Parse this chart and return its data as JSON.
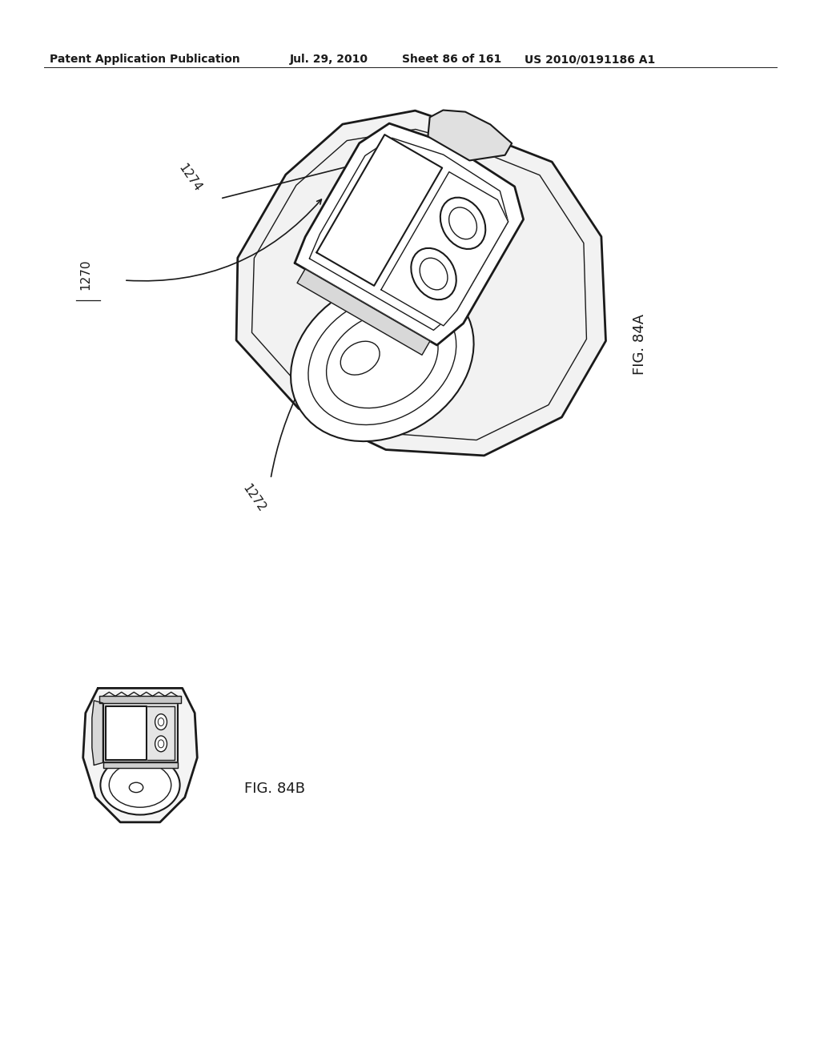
{
  "background_color": "#ffffff",
  "header_text": "Patent Application Publication",
  "header_date": "Jul. 29, 2010",
  "header_sheet": "Sheet 86 of 161",
  "header_patent": "US 2010/0191186 A1",
  "fig_label_84A": "FIG. 84A",
  "fig_label_84B": "FIG. 84B",
  "label_1270": "1270",
  "label_1272": "1272",
  "label_1274": "1274",
  "line_color": "#1a1a1a",
  "header_fontsize": 10,
  "label_fontsize": 11,
  "fig_label_fontsize": 13
}
